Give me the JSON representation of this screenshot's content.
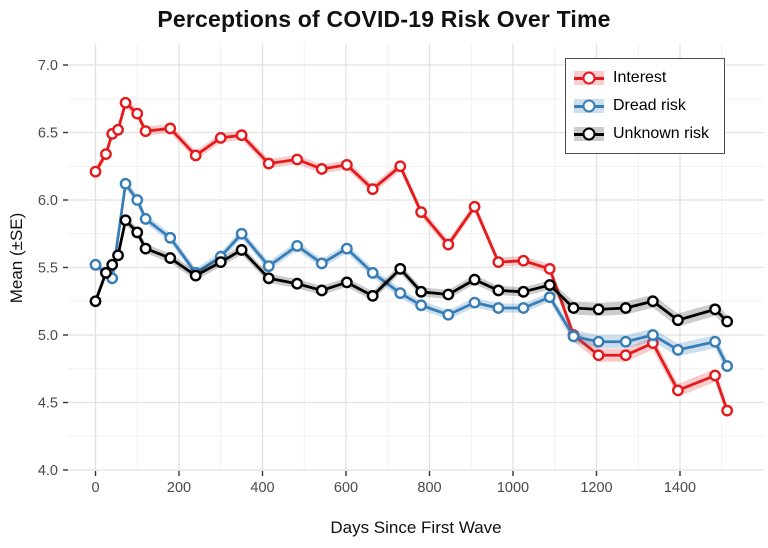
{
  "title": "Perceptions of COVID-19 Risk Over Time",
  "axes": {
    "x_label": "Days Since First Wave",
    "y_label": "Mean (±SE)",
    "x_ticks": [
      0,
      200,
      400,
      600,
      800,
      1000,
      1200,
      1400
    ],
    "y_ticks": [
      "7.0",
      "6.5",
      "6.0",
      "5.5",
      "5.0",
      "4.5",
      "4.0"
    ]
  },
  "chart_data": {
    "type": "line",
    "title": "Perceptions of COVID-19 Risk Over Time",
    "xlabel": "Days Since First Wave",
    "ylabel": "Mean (±SE)",
    "xlim": [
      -62,
      1600
    ],
    "ylim": [
      4.0,
      7.15
    ],
    "grid": "major and minor gridlines, white background, no panel border",
    "legend_position": "top-right inside panel, white box with gray border",
    "marker": "open circle, white fill",
    "ribbon": "±SE translucent band around each line",
    "series": [
      {
        "name": "Interest",
        "color": "#E41A1C",
        "band_color": "rgba(228,26,28,0.22)",
        "x": [
          0,
          25,
          40,
          54,
          72,
          100,
          120,
          179,
          240,
          300,
          350,
          415,
          483,
          542,
          602,
          664,
          730,
          780,
          845,
          908,
          965,
          1025,
          1088,
          1145,
          1205,
          1270,
          1335,
          1395,
          1484,
          1513
        ],
        "y": [
          6.21,
          6.34,
          6.49,
          6.52,
          6.72,
          6.64,
          6.51,
          6.53,
          6.33,
          6.46,
          6.48,
          6.27,
          6.3,
          6.23,
          6.26,
          6.08,
          6.25,
          5.91,
          5.67,
          5.95,
          5.54,
          5.55,
          5.49,
          5.0,
          4.85,
          4.85,
          4.94,
          4.59,
          4.7,
          4.44
        ]
      },
      {
        "name": "Dread risk",
        "color": "#377EB8",
        "band_color": "rgba(55,126,184,0.25)",
        "x": [
          0,
          40,
          72,
          100,
          120,
          179,
          240,
          300,
          350,
          415,
          483,
          542,
          602,
          664,
          730,
          780,
          845,
          908,
          965,
          1025,
          1088,
          1145,
          1205,
          1270,
          1335,
          1395,
          1484,
          1513
        ],
        "y": [
          5.52,
          5.42,
          6.12,
          6.0,
          5.86,
          5.72,
          5.46,
          5.58,
          5.75,
          5.51,
          5.66,
          5.53,
          5.64,
          5.46,
          5.31,
          5.22,
          5.15,
          5.24,
          5.2,
          5.2,
          5.28,
          4.99,
          4.95,
          4.95,
          5.0,
          4.89,
          4.95,
          4.77
        ]
      },
      {
        "name": "Unknown risk",
        "color": "#000000",
        "band_color": "rgba(0,0,0,0.20)",
        "x": [
          0,
          25,
          40,
          54,
          72,
          100,
          120,
          179,
          240,
          300,
          350,
          415,
          483,
          542,
          602,
          664,
          730,
          780,
          845,
          908,
          965,
          1025,
          1088,
          1145,
          1205,
          1270,
          1335,
          1395,
          1484,
          1513
        ],
        "y": [
          5.25,
          5.46,
          5.52,
          5.59,
          5.85,
          5.76,
          5.64,
          5.57,
          5.44,
          5.54,
          5.63,
          5.42,
          5.38,
          5.33,
          5.39,
          5.29,
          5.49,
          5.32,
          5.3,
          5.41,
          5.33,
          5.32,
          5.37,
          5.2,
          5.19,
          5.2,
          5.25,
          5.11,
          5.19,
          5.1
        ]
      }
    ]
  }
}
